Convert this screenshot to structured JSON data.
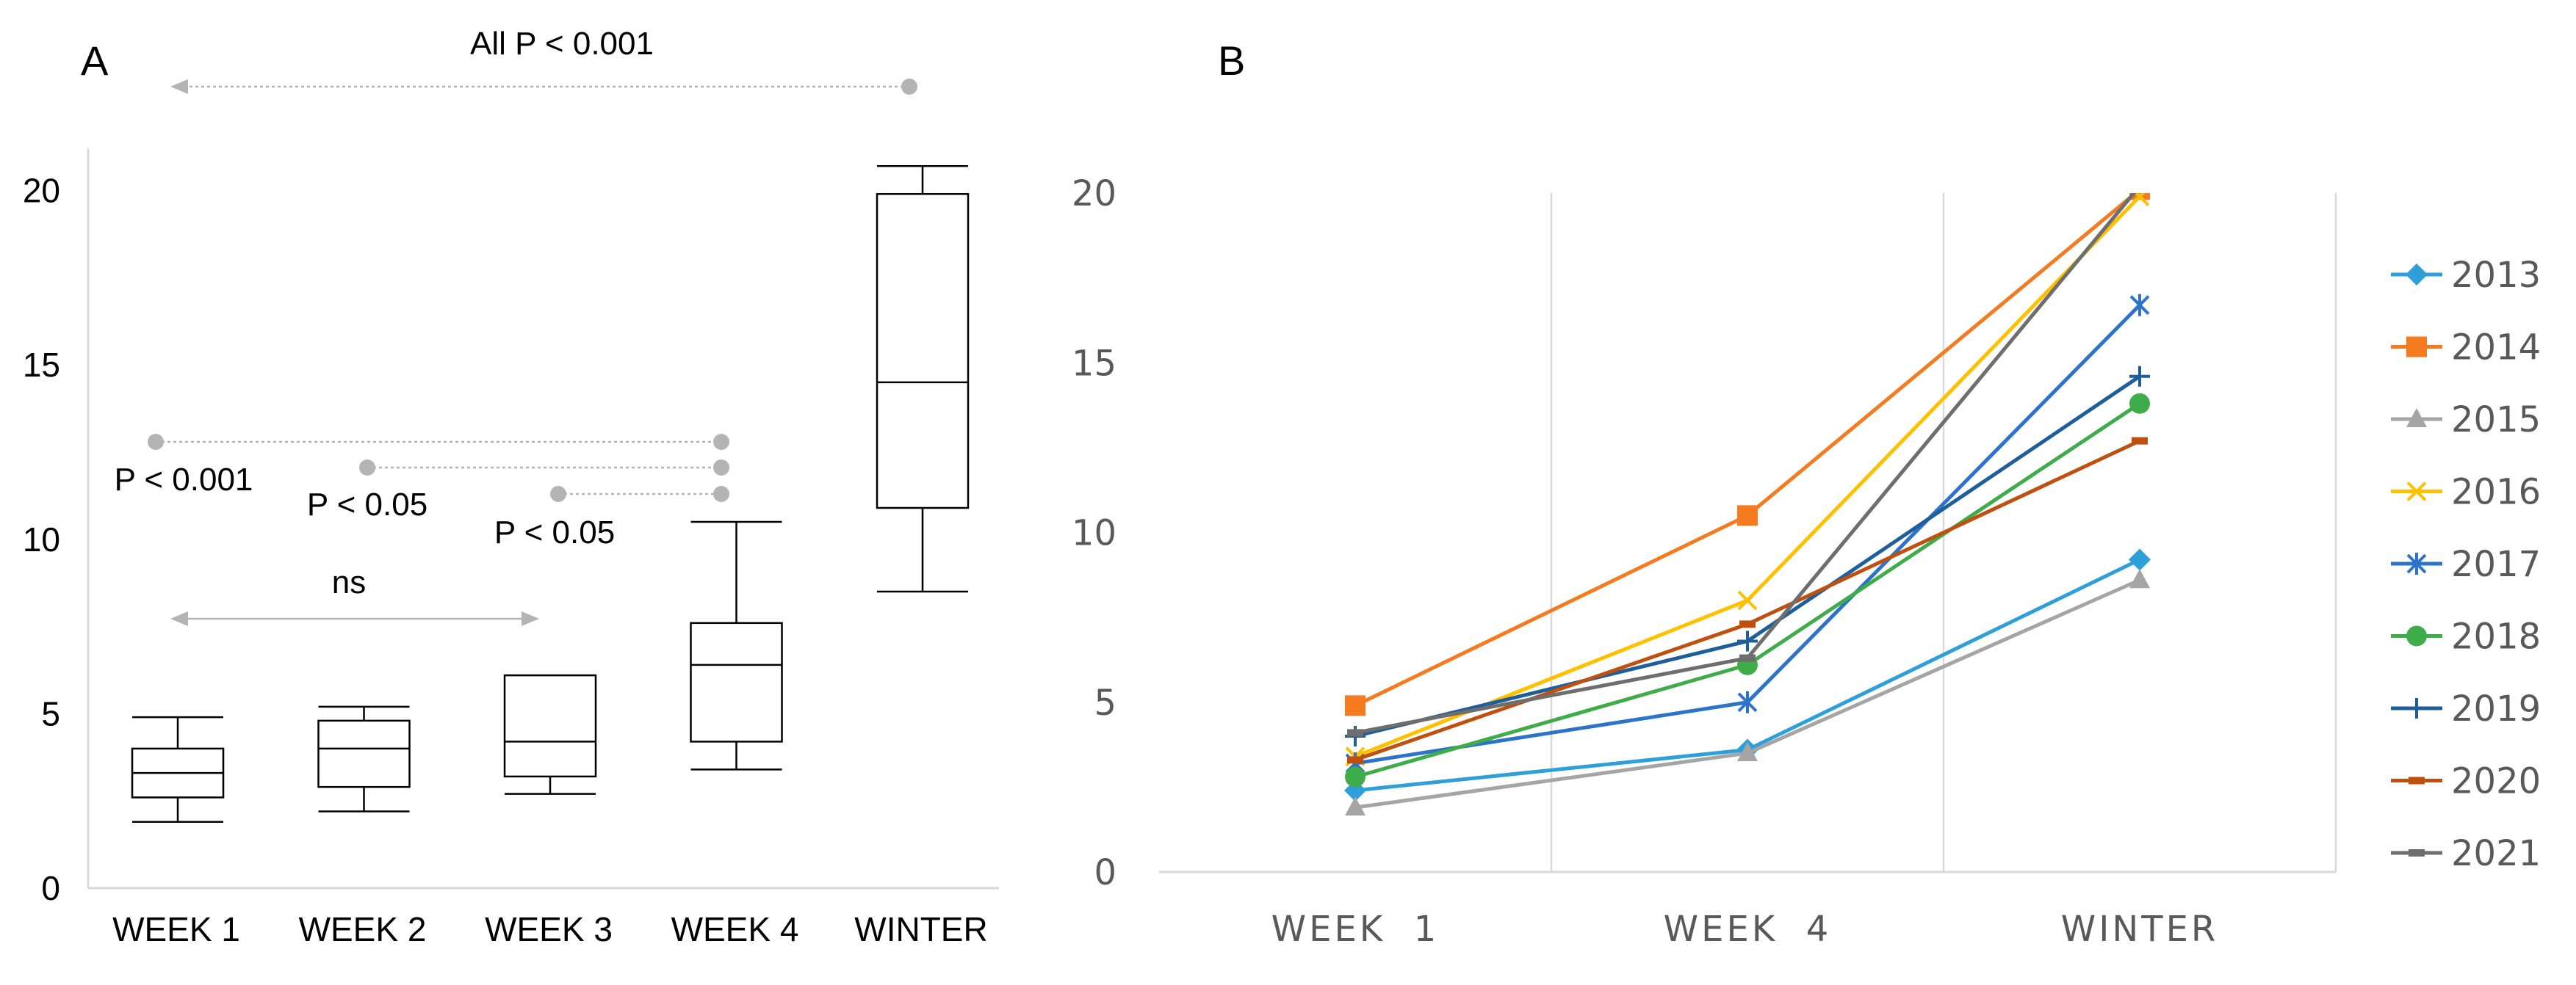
{
  "chart_data": [
    {
      "panel": "A",
      "type": "box",
      "panel_label": "A",
      "categories": [
        "WEEK 1",
        "WEEK 2",
        "WEEK 3",
        "WEEK 4",
        "WINTER"
      ],
      "ylim": [
        0,
        21
      ],
      "yticks": [
        0,
        5,
        10,
        15,
        20
      ],
      "boxes": [
        {
          "name": "WEEK 1",
          "min": 1.9,
          "q1": 2.6,
          "median": 3.3,
          "q3": 4.0,
          "max": 4.9
        },
        {
          "name": "WEEK 2",
          "min": 2.2,
          "q1": 2.9,
          "median": 4.0,
          "q3": 4.8,
          "max": 5.2
        },
        {
          "name": "WEEK 3",
          "min": 2.7,
          "q1": 3.2,
          "median": 4.2,
          "q3": 6.1,
          "max": 6.1
        },
        {
          "name": "WEEK 4",
          "min": 3.4,
          "q1": 4.2,
          "median": 6.4,
          "q3": 7.6,
          "max": 10.5
        },
        {
          "name": "WINTER",
          "min": 8.5,
          "q1": 10.9,
          "median": 14.5,
          "q3": 19.9,
          "max": 20.7
        }
      ],
      "annotations": {
        "all": "All P < 0.001",
        "p1": "P < 0.001",
        "p2": "P < 0.05",
        "p3": "P < 0.05",
        "ns": "ns"
      }
    },
    {
      "panel": "B",
      "type": "line",
      "panel_label": "B",
      "categories": [
        "WEEK  1",
        "WEEK  4",
        "WINTER"
      ],
      "ylim": [
        0,
        20
      ],
      "yticks": [
        0,
        5,
        10,
        15,
        20
      ],
      "series": [
        {
          "name": "2013",
          "values": [
            2.4,
            3.6,
            9.2
          ],
          "color": "#2e9fd8",
          "marker": "diamond"
        },
        {
          "name": "2014",
          "values": [
            4.9,
            10.5,
            20.1
          ],
          "color": "#f47b20",
          "marker": "square"
        },
        {
          "name": "2015",
          "values": [
            1.9,
            3.5,
            8.6
          ],
          "color": "#a5a5a5",
          "marker": "triangle"
        },
        {
          "name": "2016",
          "values": [
            3.4,
            8.0,
            19.9
          ],
          "color": "#ffc000",
          "marker": "x"
        },
        {
          "name": "2017",
          "values": [
            3.2,
            5.0,
            16.7
          ],
          "color": "#2d73c9",
          "marker": "star"
        },
        {
          "name": "2018",
          "values": [
            2.8,
            6.1,
            13.8
          ],
          "color": "#3ead49",
          "marker": "circle"
        },
        {
          "name": "2019",
          "values": [
            4.0,
            6.8,
            14.6
          ],
          "color": "#1f5f99",
          "marker": "plus"
        },
        {
          "name": "2020",
          "values": [
            3.3,
            7.3,
            12.7
          ],
          "color": "#c0500f",
          "marker": "dash"
        },
        {
          "name": "2021",
          "values": [
            4.1,
            6.3,
            20.2
          ],
          "color": "#6e6e6e",
          "marker": "dash"
        }
      ]
    }
  ]
}
